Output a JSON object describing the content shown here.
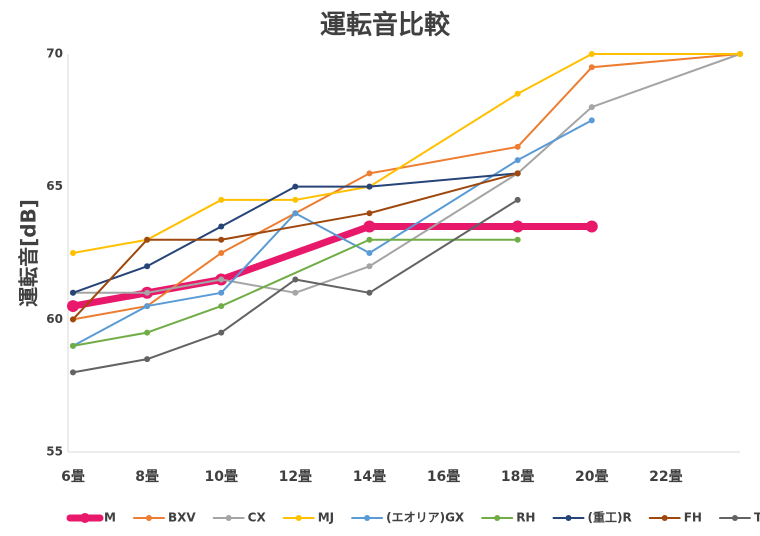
{
  "chart_data": {
    "type": "line",
    "title": "運転音比較",
    "y_label": "運転音[dB]",
    "categories": [
      "6畳",
      "8畳",
      "10畳",
      "12畳",
      "14畳",
      "16畳",
      "18畳",
      "20畳",
      "22畳",
      null
    ],
    "ylim": [
      55,
      70
    ],
    "yticks": [
      55,
      60,
      65,
      70
    ],
    "grid": false,
    "legend": "bottom",
    "series": [
      {
        "name": "M",
        "color": "#e8186a",
        "width": 7,
        "values": [
          60.5,
          61,
          61.5,
          null,
          63.5,
          null,
          63.5,
          63.5,
          null,
          null
        ]
      },
      {
        "name": "BXV",
        "color": "#ed7d31",
        "values": [
          60,
          60.5,
          62.5,
          64,
          65.5,
          null,
          66.5,
          69.5,
          null,
          70
        ]
      },
      {
        "name": "CX",
        "color": "#a5a5a5",
        "values": [
          61,
          61,
          61.5,
          61,
          62,
          null,
          65.5,
          68,
          null,
          70
        ]
      },
      {
        "name": "MJ",
        "color": "#ffc000",
        "values": [
          62.5,
          63,
          64.5,
          64.5,
          65,
          null,
          68.5,
          70,
          null,
          70
        ]
      },
      {
        "name": "(エオリア)GX",
        "color": "#5b9bd5",
        "values": [
          59,
          60.5,
          61,
          64,
          62.5,
          null,
          66,
          67.5,
          null,
          null
        ]
      },
      {
        "name": "RH",
        "color": "#70ad47",
        "values": [
          59,
          59.5,
          60.5,
          null,
          63,
          null,
          63,
          null,
          null,
          null
        ]
      },
      {
        "name": "(重工)R",
        "color": "#264478",
        "values": [
          61,
          62,
          63.5,
          65,
          65,
          null,
          65.5,
          null,
          null,
          null
        ]
      },
      {
        "name": "FH",
        "color": "#9e480e",
        "values": [
          60,
          63,
          63,
          null,
          64,
          null,
          65.5,
          null,
          null,
          null
        ]
      },
      {
        "name": "T",
        "color": "#636363",
        "values": [
          58,
          58.5,
          59.5,
          61.5,
          61,
          null,
          64.5,
          null,
          null,
          null
        ]
      },
      {
        "name": null,
        "color": "#997300",
        "values": [
          null,
          null,
          null,
          null,
          null,
          null,
          null,
          null,
          null,
          null
        ]
      }
    ]
  }
}
